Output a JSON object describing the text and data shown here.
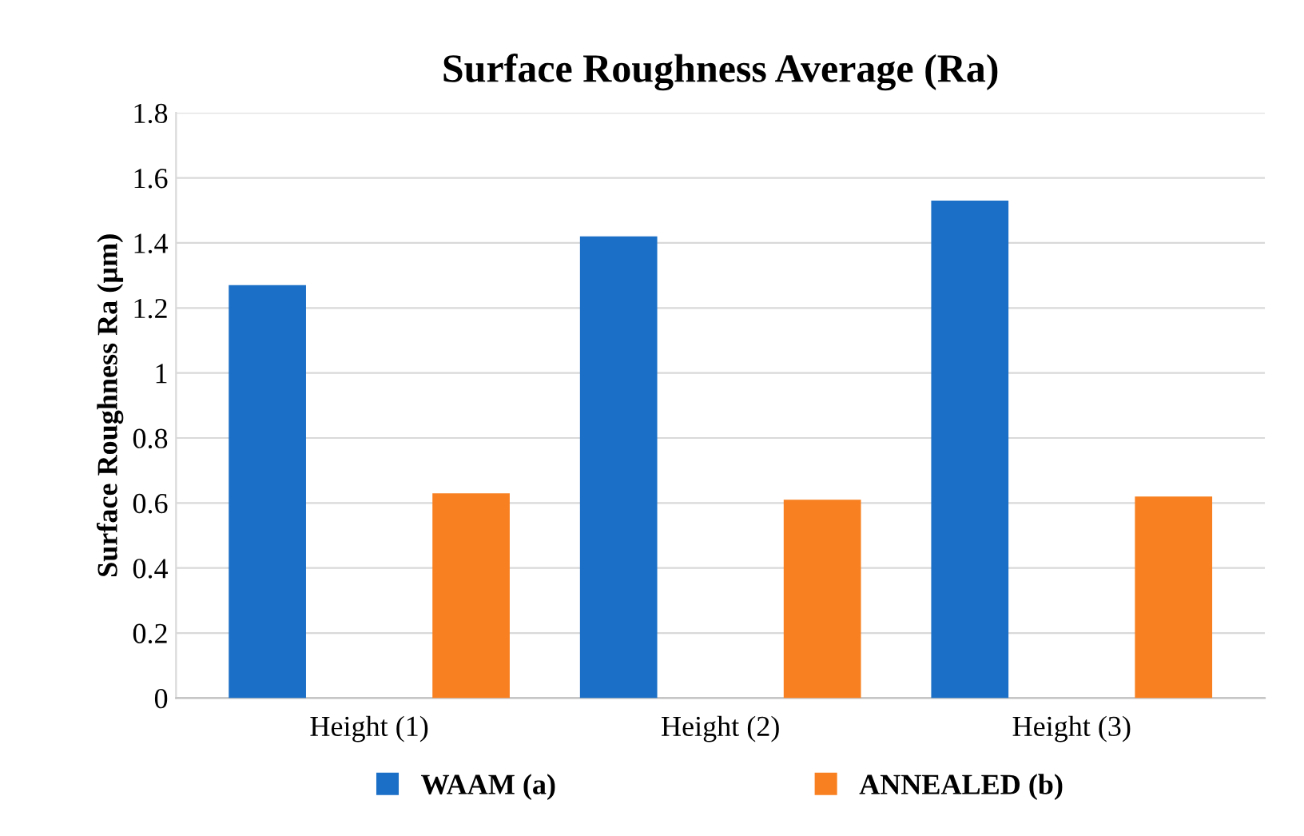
{
  "chart_data": {
    "type": "bar",
    "title": "Surface Roughness Average (Ra)",
    "ylabel": "Surface Roughness Ra (µm)",
    "categories": [
      "Height (1)",
      "Height (2)",
      "Height (3)"
    ],
    "series": [
      {
        "name": "WAAM (a)",
        "color": "#1b6fc6",
        "values": [
          1.27,
          1.42,
          1.53
        ]
      },
      {
        "name": "ANNEALED (b)",
        "color": "#f98020",
        "values": [
          0.63,
          0.61,
          0.62
        ]
      }
    ],
    "ylim": [
      0,
      1.8
    ],
    "yticks": [
      0,
      0.2,
      0.4,
      0.6,
      0.8,
      1,
      1.2,
      1.4,
      1.6,
      1.8
    ],
    "grid": "y",
    "legend": "bottom"
  }
}
